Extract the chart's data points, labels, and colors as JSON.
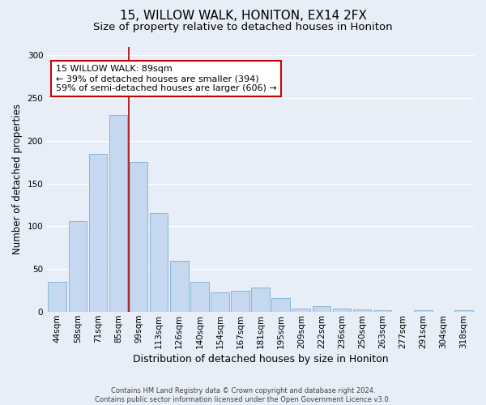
{
  "title1": "15, WILLOW WALK, HONITON, EX14 2FX",
  "title2": "Size of property relative to detached houses in Honiton",
  "xlabel": "Distribution of detached houses by size in Honiton",
  "ylabel": "Number of detached properties",
  "footer1": "Contains HM Land Registry data © Crown copyright and database right 2024.",
  "footer2": "Contains public sector information licensed under the Open Government Licence v3.0.",
  "categories": [
    "44sqm",
    "58sqm",
    "71sqm",
    "85sqm",
    "99sqm",
    "113sqm",
    "126sqm",
    "140sqm",
    "154sqm",
    "167sqm",
    "181sqm",
    "195sqm",
    "209sqm",
    "222sqm",
    "236sqm",
    "250sqm",
    "263sqm",
    "277sqm",
    "291sqm",
    "304sqm",
    "318sqm"
  ],
  "values": [
    35,
    106,
    185,
    230,
    175,
    116,
    60,
    35,
    23,
    25,
    29,
    16,
    4,
    7,
    4,
    3,
    2,
    0,
    2,
    0,
    2
  ],
  "bar_color": "#c5d8ef",
  "bar_edge_color": "#7aafd4",
  "vline_color": "#aa0000",
  "vline_pos": 3.5,
  "annotation_text": "15 WILLOW WALK: 89sqm\n← 39% of detached houses are smaller (394)\n59% of semi-detached houses are larger (606) →",
  "annotation_box_facecolor": "#ffffff",
  "annotation_box_edgecolor": "#cc0000",
  "annotation_text_color": "#000000",
  "ylim": [
    0,
    310
  ],
  "yticks": [
    0,
    50,
    100,
    150,
    200,
    250,
    300
  ],
  "background_color": "#e8eef7",
  "grid_color": "#ffffff",
  "title1_fontsize": 11,
  "title2_fontsize": 9.5,
  "xlabel_fontsize": 9,
  "ylabel_fontsize": 8.5,
  "tick_fontsize": 7.5,
  "annotation_fontsize": 8,
  "footer_fontsize": 6
}
